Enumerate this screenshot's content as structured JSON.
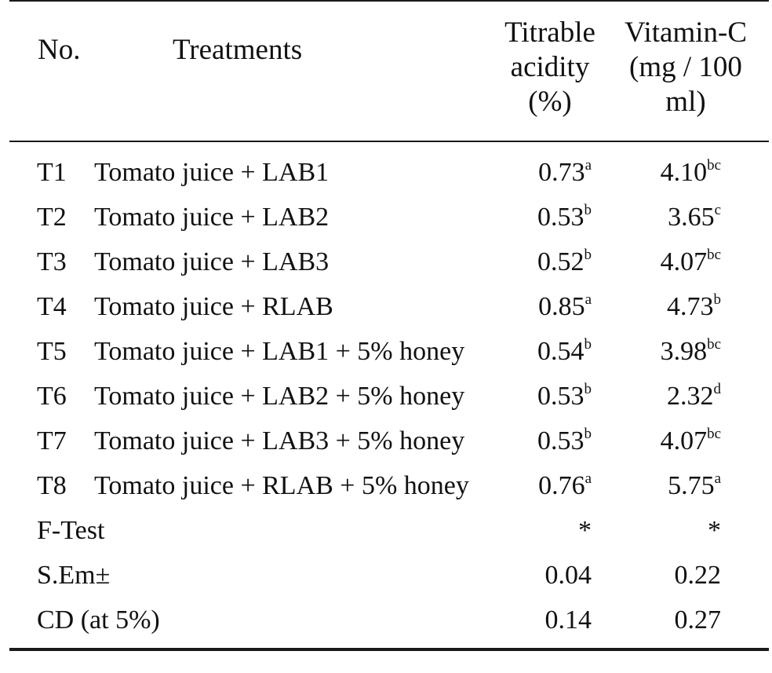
{
  "table": {
    "headers": {
      "no": "No.",
      "treatments": "Treatments",
      "acidity": [
        "Titrable",
        "acidity",
        "(%)"
      ],
      "vitamin_c": [
        "Vitamin-C",
        "(mg / 100",
        "ml)"
      ]
    },
    "rows": [
      {
        "no": "T1",
        "treatment": "Tomato juice + LAB1",
        "acidity": "0.73",
        "acidity_sig": "a",
        "vitc": "4.10",
        "vitc_sig": "bc"
      },
      {
        "no": "T2",
        "treatment": "Tomato juice + LAB2",
        "acidity": "0.53",
        "acidity_sig": "b",
        "vitc": "3.65",
        "vitc_sig": "c"
      },
      {
        "no": "T3",
        "treatment": "Tomato juice + LAB3",
        "acidity": "0.52",
        "acidity_sig": "b",
        "vitc": "4.07",
        "vitc_sig": "bc"
      },
      {
        "no": "T4",
        "treatment": "Tomato juice + RLAB",
        "acidity": "0.85",
        "acidity_sig": "a",
        "vitc": "4.73",
        "vitc_sig": "b"
      },
      {
        "no": "T5",
        "treatment": "Tomato juice + LAB1 + 5% honey",
        "acidity": "0.54",
        "acidity_sig": "b",
        "vitc": "3.98",
        "vitc_sig": "bc"
      },
      {
        "no": "T6",
        "treatment": "Tomato juice + LAB2 + 5% honey",
        "acidity": "0.53",
        "acidity_sig": "b",
        "vitc": "2.32",
        "vitc_sig": "d"
      },
      {
        "no": "T7",
        "treatment": "Tomato juice + LAB3 + 5% honey",
        "acidity": "0.53",
        "acidity_sig": "b",
        "vitc": "4.07",
        "vitc_sig": "bc"
      },
      {
        "no": "T8",
        "treatment": "Tomato juice + RLAB + 5% honey",
        "acidity": "0.76",
        "acidity_sig": "a",
        "vitc": "5.75",
        "vitc_sig": "a"
      }
    ],
    "stats": [
      {
        "label": "F-Test",
        "acidity": "*",
        "vitc": "*"
      },
      {
        "label": "S.Em±",
        "acidity": "0.04",
        "vitc": "0.22"
      },
      {
        "label": "CD (at 5%)",
        "acidity": "0.14",
        "vitc": "0.27"
      }
    ]
  }
}
